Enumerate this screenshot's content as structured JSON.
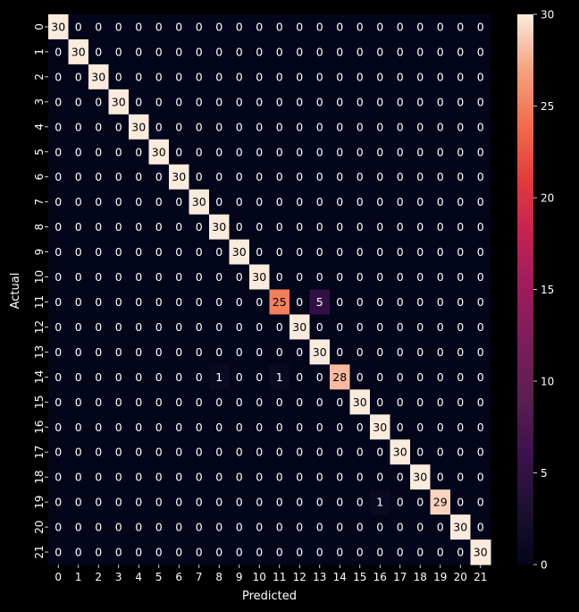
{
  "chart_data": {
    "type": "heatmap",
    "xlabel": "Predicted",
    "ylabel": "Actual",
    "x_categories": [
      "0",
      "1",
      "2",
      "3",
      "4",
      "5",
      "6",
      "7",
      "8",
      "9",
      "10",
      "11",
      "12",
      "13",
      "14",
      "15",
      "16",
      "17",
      "18",
      "19",
      "20",
      "21"
    ],
    "y_categories": [
      "0",
      "1",
      "2",
      "3",
      "4",
      "5",
      "6",
      "7",
      "8",
      "9",
      "10",
      "11",
      "12",
      "13",
      "14",
      "15",
      "16",
      "17",
      "18",
      "19",
      "20",
      "21"
    ],
    "colorbar": {
      "min": 0,
      "max": 30,
      "ticks": [
        0,
        5,
        10,
        15,
        20,
        25,
        30
      ]
    },
    "colormap": "rocket",
    "values": [
      [
        30,
        0,
        0,
        0,
        0,
        0,
        0,
        0,
        0,
        0,
        0,
        0,
        0,
        0,
        0,
        0,
        0,
        0,
        0,
        0,
        0,
        0
      ],
      [
        0,
        30,
        0,
        0,
        0,
        0,
        0,
        0,
        0,
        0,
        0,
        0,
        0,
        0,
        0,
        0,
        0,
        0,
        0,
        0,
        0,
        0
      ],
      [
        0,
        0,
        30,
        0,
        0,
        0,
        0,
        0,
        0,
        0,
        0,
        0,
        0,
        0,
        0,
        0,
        0,
        0,
        0,
        0,
        0,
        0
      ],
      [
        0,
        0,
        0,
        30,
        0,
        0,
        0,
        0,
        0,
        0,
        0,
        0,
        0,
        0,
        0,
        0,
        0,
        0,
        0,
        0,
        0,
        0
      ],
      [
        0,
        0,
        0,
        0,
        30,
        0,
        0,
        0,
        0,
        0,
        0,
        0,
        0,
        0,
        0,
        0,
        0,
        0,
        0,
        0,
        0,
        0
      ],
      [
        0,
        0,
        0,
        0,
        0,
        30,
        0,
        0,
        0,
        0,
        0,
        0,
        0,
        0,
        0,
        0,
        0,
        0,
        0,
        0,
        0,
        0
      ],
      [
        0,
        0,
        0,
        0,
        0,
        0,
        30,
        0,
        0,
        0,
        0,
        0,
        0,
        0,
        0,
        0,
        0,
        0,
        0,
        0,
        0,
        0
      ],
      [
        0,
        0,
        0,
        0,
        0,
        0,
        0,
        30,
        0,
        0,
        0,
        0,
        0,
        0,
        0,
        0,
        0,
        0,
        0,
        0,
        0,
        0
      ],
      [
        0,
        0,
        0,
        0,
        0,
        0,
        0,
        0,
        30,
        0,
        0,
        0,
        0,
        0,
        0,
        0,
        0,
        0,
        0,
        0,
        0,
        0
      ],
      [
        0,
        0,
        0,
        0,
        0,
        0,
        0,
        0,
        0,
        30,
        0,
        0,
        0,
        0,
        0,
        0,
        0,
        0,
        0,
        0,
        0,
        0
      ],
      [
        0,
        0,
        0,
        0,
        0,
        0,
        0,
        0,
        0,
        0,
        30,
        0,
        0,
        0,
        0,
        0,
        0,
        0,
        0,
        0,
        0,
        0
      ],
      [
        0,
        0,
        0,
        0,
        0,
        0,
        0,
        0,
        0,
        0,
        0,
        25,
        0,
        5,
        0,
        0,
        0,
        0,
        0,
        0,
        0,
        0
      ],
      [
        0,
        0,
        0,
        0,
        0,
        0,
        0,
        0,
        0,
        0,
        0,
        0,
        30,
        0,
        0,
        0,
        0,
        0,
        0,
        0,
        0,
        0
      ],
      [
        0,
        0,
        0,
        0,
        0,
        0,
        0,
        0,
        0,
        0,
        0,
        0,
        0,
        30,
        0,
        0,
        0,
        0,
        0,
        0,
        0,
        0
      ],
      [
        0,
        0,
        0,
        0,
        0,
        0,
        0,
        0,
        1,
        0,
        0,
        1,
        0,
        0,
        28,
        0,
        0,
        0,
        0,
        0,
        0,
        0
      ],
      [
        0,
        0,
        0,
        0,
        0,
        0,
        0,
        0,
        0,
        0,
        0,
        0,
        0,
        0,
        0,
        30,
        0,
        0,
        0,
        0,
        0,
        0
      ],
      [
        0,
        0,
        0,
        0,
        0,
        0,
        0,
        0,
        0,
        0,
        0,
        0,
        0,
        0,
        0,
        0,
        30,
        0,
        0,
        0,
        0,
        0
      ],
      [
        0,
        0,
        0,
        0,
        0,
        0,
        0,
        0,
        0,
        0,
        0,
        0,
        0,
        0,
        0,
        0,
        0,
        30,
        0,
        0,
        0,
        0
      ],
      [
        0,
        0,
        0,
        0,
        0,
        0,
        0,
        0,
        0,
        0,
        0,
        0,
        0,
        0,
        0,
        0,
        0,
        0,
        30,
        0,
        0,
        0
      ],
      [
        0,
        0,
        0,
        0,
        0,
        0,
        0,
        0,
        0,
        0,
        0,
        0,
        0,
        0,
        0,
        0,
        1,
        0,
        0,
        29,
        0,
        0
      ],
      [
        0,
        0,
        0,
        0,
        0,
        0,
        0,
        0,
        0,
        0,
        0,
        0,
        0,
        0,
        0,
        0,
        0,
        0,
        0,
        0,
        30,
        0
      ],
      [
        0,
        0,
        0,
        0,
        0,
        0,
        0,
        0,
        0,
        0,
        0,
        0,
        0,
        0,
        0,
        0,
        0,
        0,
        0,
        0,
        0,
        30
      ]
    ],
    "annotations": true
  }
}
